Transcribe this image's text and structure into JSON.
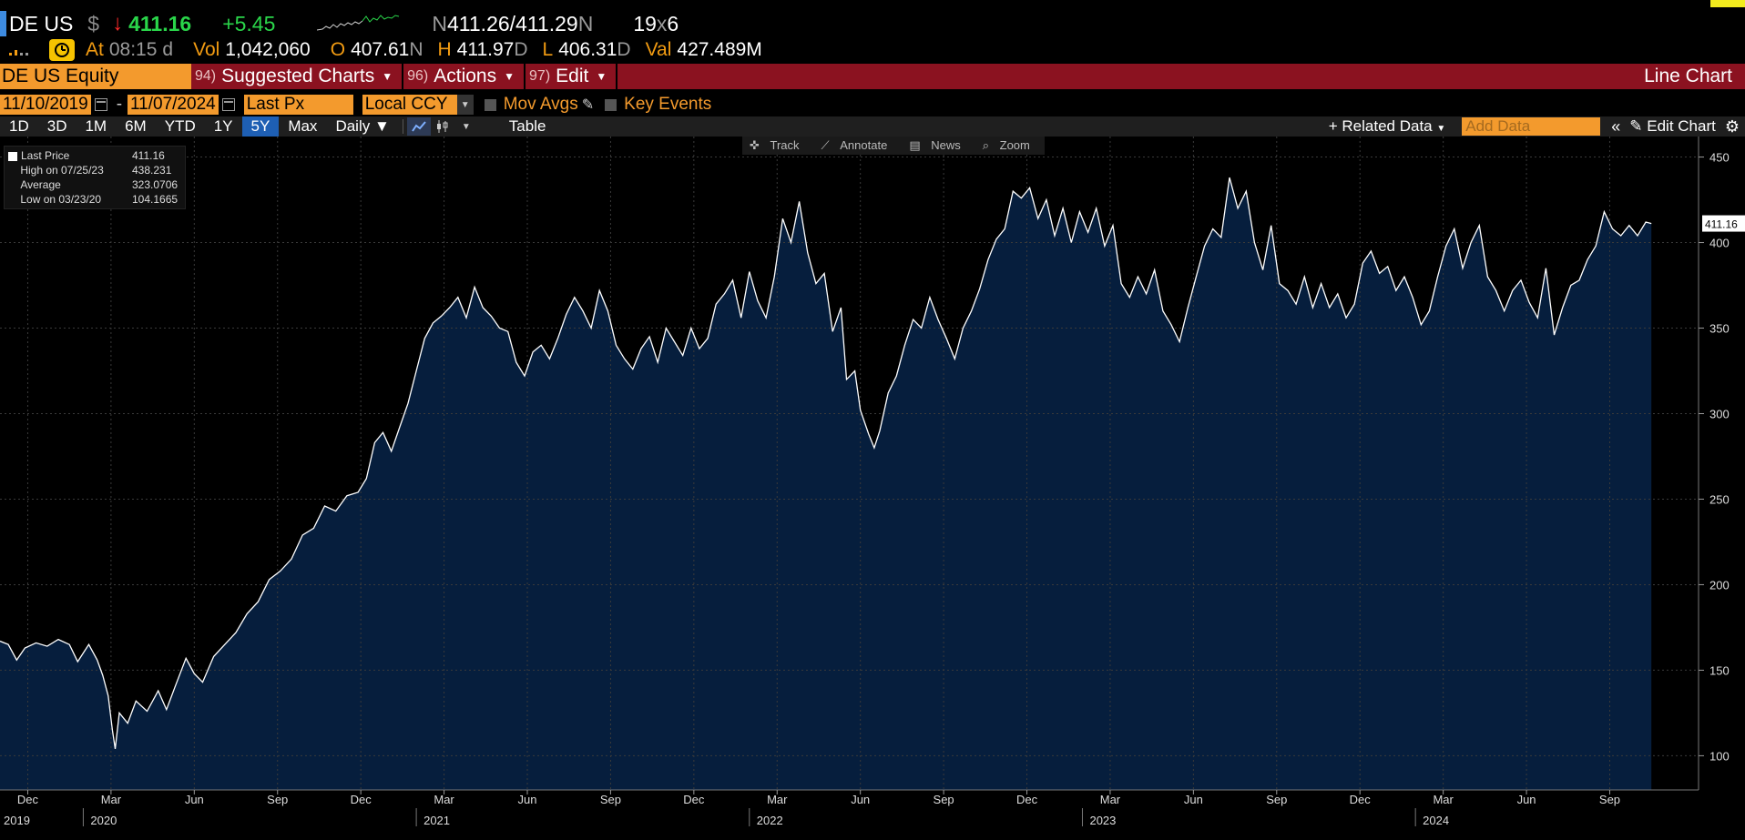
{
  "quote": {
    "ticker": "DE US",
    "currency_symbol": "$",
    "direction_arrow": "↓",
    "last": "411.16",
    "change": "+5.45",
    "bid_prefix": "N",
    "bid_ask": "411.26/411.29",
    "ask_suffix": "N",
    "size": "19",
    "size_x": "x",
    "size2": "6"
  },
  "stats": {
    "at_label": "At",
    "time": "08:15",
    "time_suffix": "d",
    "vol_label": "Vol",
    "vol": "1,042,060",
    "open_label": "O",
    "open": "407.61",
    "open_suffix": "N",
    "high_label": "H",
    "high": "411.97",
    "high_suffix": "D",
    "low_label": "L",
    "low": "406.31",
    "low_suffix": "D",
    "val_label": "Val",
    "val": "427.489M"
  },
  "menu": {
    "security": "DE US Equity",
    "items": [
      {
        "num": "94)",
        "label": "Suggested Charts"
      },
      {
        "num": "96)",
        "label": "Actions"
      },
      {
        "num": "97)",
        "label": "Edit"
      }
    ],
    "chart_type": "Line Chart"
  },
  "params": {
    "start_date": "11/10/2019",
    "end_date": "11/07/2024",
    "field": "Last Px",
    "currency": "Local CCY",
    "mov_avgs": "Mov Avgs",
    "key_events": "Key Events"
  },
  "toolbar": {
    "periods": [
      "1D",
      "3D",
      "1M",
      "6M",
      "YTD",
      "1Y",
      "5Y",
      "Max"
    ],
    "active_period": "5Y",
    "frequency": "Daily",
    "table": "Table",
    "related": "Related Data",
    "add_data_placeholder": "Add Data",
    "edit_chart": "Edit Chart"
  },
  "chart_tools": [
    "Track",
    "Annotate",
    "News",
    "Zoom"
  ],
  "legend": [
    {
      "name": "Last Price",
      "value": "411.16"
    },
    {
      "name": "High on 07/25/23",
      "value": "438.231"
    },
    {
      "name": "Average",
      "value": "323.0706"
    },
    {
      "name": "Low on 03/23/20",
      "value": "104.1665"
    }
  ],
  "colors": {
    "background": "#000000",
    "area_fill": "#061e3d",
    "line": "#ffffff",
    "up": "#2ad54a",
    "down": "#ff2a2a",
    "accent": "#f39a2d",
    "menu_bar": "#8b1220"
  },
  "chart_data": {
    "type": "area",
    "ylim": [
      80,
      462
    ],
    "yticks": [
      100,
      150,
      200,
      250,
      300,
      350,
      400,
      450
    ],
    "last_value_label": "411.16",
    "month_ticks": [
      {
        "m": 1.0,
        "label": "Dec"
      },
      {
        "m": 4.0,
        "label": "Mar"
      },
      {
        "m": 7.0,
        "label": "Jun"
      },
      {
        "m": 10.0,
        "label": "Sep"
      },
      {
        "m": 13.0,
        "label": "Dec"
      },
      {
        "m": 16.0,
        "label": "Mar"
      },
      {
        "m": 19.0,
        "label": "Jun"
      },
      {
        "m": 22.0,
        "label": "Sep"
      },
      {
        "m": 25.0,
        "label": "Dec"
      },
      {
        "m": 28.0,
        "label": "Mar"
      },
      {
        "m": 31.0,
        "label": "Jun"
      },
      {
        "m": 34.0,
        "label": "Sep"
      },
      {
        "m": 37.0,
        "label": "Dec"
      },
      {
        "m": 40.0,
        "label": "Mar"
      },
      {
        "m": 43.0,
        "label": "Jun"
      },
      {
        "m": 46.0,
        "label": "Sep"
      },
      {
        "m": 49.0,
        "label": "Dec"
      },
      {
        "m": 52.0,
        "label": "Mar"
      },
      {
        "m": 55.0,
        "label": "Jun"
      },
      {
        "m": 58.0,
        "label": "Sep"
      }
    ],
    "year_labels": [
      {
        "m": 0.0,
        "label": "2019"
      },
      {
        "m": 3.0,
        "label": "2020"
      },
      {
        "m": 15.0,
        "label": "2021"
      },
      {
        "m": 27.0,
        "label": "2022"
      },
      {
        "m": 39.0,
        "label": "2023"
      },
      {
        "m": 51.0,
        "label": "2024"
      }
    ],
    "points": [
      [
        0.0,
        167
      ],
      [
        0.3,
        165
      ],
      [
        0.6,
        156
      ],
      [
        0.9,
        163
      ],
      [
        1.3,
        166
      ],
      [
        1.7,
        164
      ],
      [
        2.1,
        168
      ],
      [
        2.5,
        165
      ],
      [
        2.8,
        155
      ],
      [
        3.2,
        165
      ],
      [
        3.5,
        156
      ],
      [
        3.7,
        147
      ],
      [
        3.9,
        135
      ],
      [
        4.05,
        115
      ],
      [
        4.15,
        104
      ],
      [
        4.3,
        125
      ],
      [
        4.6,
        119
      ],
      [
        4.9,
        132
      ],
      [
        5.3,
        126
      ],
      [
        5.7,
        138
      ],
      [
        6.0,
        127
      ],
      [
        6.3,
        140
      ],
      [
        6.7,
        157
      ],
      [
        7.0,
        148
      ],
      [
        7.3,
        143
      ],
      [
        7.7,
        158
      ],
      [
        8.1,
        165
      ],
      [
        8.5,
        172
      ],
      [
        8.9,
        183
      ],
      [
        9.3,
        190
      ],
      [
        9.7,
        203
      ],
      [
        10.1,
        208
      ],
      [
        10.5,
        215
      ],
      [
        10.9,
        229
      ],
      [
        11.3,
        233
      ],
      [
        11.7,
        246
      ],
      [
        12.1,
        243
      ],
      [
        12.5,
        252
      ],
      [
        12.9,
        254
      ],
      [
        13.2,
        262
      ],
      [
        13.5,
        283
      ],
      [
        13.8,
        289
      ],
      [
        14.1,
        278
      ],
      [
        14.4,
        292
      ],
      [
        14.7,
        306
      ],
      [
        15.0,
        325
      ],
      [
        15.3,
        344
      ],
      [
        15.6,
        353
      ],
      [
        15.9,
        357
      ],
      [
        16.2,
        362
      ],
      [
        16.5,
        368
      ],
      [
        16.8,
        356
      ],
      [
        17.1,
        374
      ],
      [
        17.4,
        362
      ],
      [
        17.7,
        357
      ],
      [
        18.0,
        350
      ],
      [
        18.3,
        348
      ],
      [
        18.6,
        330
      ],
      [
        18.9,
        322
      ],
      [
        19.2,
        336
      ],
      [
        19.5,
        340
      ],
      [
        19.8,
        332
      ],
      [
        20.1,
        344
      ],
      [
        20.4,
        358
      ],
      [
        20.7,
        368
      ],
      [
        21.0,
        360
      ],
      [
        21.3,
        350
      ],
      [
        21.6,
        372
      ],
      [
        21.9,
        360
      ],
      [
        22.2,
        340
      ],
      [
        22.5,
        332
      ],
      [
        22.8,
        326
      ],
      [
        23.1,
        338
      ],
      [
        23.4,
        345
      ],
      [
        23.7,
        330
      ],
      [
        24.0,
        350
      ],
      [
        24.3,
        342
      ],
      [
        24.6,
        334
      ],
      [
        24.9,
        350
      ],
      [
        25.2,
        338
      ],
      [
        25.5,
        344
      ],
      [
        25.8,
        364
      ],
      [
        26.1,
        370
      ],
      [
        26.4,
        378
      ],
      [
        26.7,
        356
      ],
      [
        27.0,
        383
      ],
      [
        27.3,
        366
      ],
      [
        27.6,
        356
      ],
      [
        27.9,
        380
      ],
      [
        28.2,
        414
      ],
      [
        28.5,
        400
      ],
      [
        28.8,
        424
      ],
      [
        29.1,
        394
      ],
      [
        29.4,
        376
      ],
      [
        29.7,
        382
      ],
      [
        30.0,
        348
      ],
      [
        30.3,
        362
      ],
      [
        30.5,
        320
      ],
      [
        30.8,
        325
      ],
      [
        31.0,
        302
      ],
      [
        31.3,
        288
      ],
      [
        31.5,
        280
      ],
      [
        31.7,
        290
      ],
      [
        32.0,
        312
      ],
      [
        32.3,
        322
      ],
      [
        32.6,
        340
      ],
      [
        32.9,
        355
      ],
      [
        33.2,
        350
      ],
      [
        33.5,
        368
      ],
      [
        33.8,
        355
      ],
      [
        34.1,
        344
      ],
      [
        34.4,
        332
      ],
      [
        34.7,
        350
      ],
      [
        35.0,
        360
      ],
      [
        35.3,
        373
      ],
      [
        35.6,
        390
      ],
      [
        35.9,
        402
      ],
      [
        36.2,
        408
      ],
      [
        36.5,
        430
      ],
      [
        36.8,
        426
      ],
      [
        37.1,
        432
      ],
      [
        37.4,
        414
      ],
      [
        37.7,
        425
      ],
      [
        38.0,
        404
      ],
      [
        38.3,
        420
      ],
      [
        38.6,
        400
      ],
      [
        38.9,
        418
      ],
      [
        39.2,
        406
      ],
      [
        39.5,
        420
      ],
      [
        39.8,
        398
      ],
      [
        40.1,
        410
      ],
      [
        40.4,
        376
      ],
      [
        40.7,
        368
      ],
      [
        41.0,
        380
      ],
      [
        41.3,
        370
      ],
      [
        41.6,
        384
      ],
      [
        41.9,
        360
      ],
      [
        42.2,
        352
      ],
      [
        42.5,
        342
      ],
      [
        42.8,
        362
      ],
      [
        43.1,
        380
      ],
      [
        43.4,
        398
      ],
      [
        43.7,
        408
      ],
      [
        44.0,
        403
      ],
      [
        44.3,
        438
      ],
      [
        44.6,
        420
      ],
      [
        44.9,
        430
      ],
      [
        45.2,
        400
      ],
      [
        45.5,
        384
      ],
      [
        45.8,
        410
      ],
      [
        46.1,
        376
      ],
      [
        46.4,
        372
      ],
      [
        46.7,
        364
      ],
      [
        47.0,
        380
      ],
      [
        47.3,
        362
      ],
      [
        47.6,
        376
      ],
      [
        47.9,
        362
      ],
      [
        48.2,
        370
      ],
      [
        48.5,
        356
      ],
      [
        48.8,
        364
      ],
      [
        49.1,
        388
      ],
      [
        49.4,
        395
      ],
      [
        49.7,
        382
      ],
      [
        50.0,
        386
      ],
      [
        50.3,
        372
      ],
      [
        50.6,
        380
      ],
      [
        50.9,
        368
      ],
      [
        51.2,
        352
      ],
      [
        51.5,
        360
      ],
      [
        51.8,
        380
      ],
      [
        52.1,
        398
      ],
      [
        52.4,
        408
      ],
      [
        52.7,
        385
      ],
      [
        53.0,
        400
      ],
      [
        53.3,
        410
      ],
      [
        53.6,
        380
      ],
      [
        53.9,
        372
      ],
      [
        54.2,
        360
      ],
      [
        54.5,
        372
      ],
      [
        54.8,
        378
      ],
      [
        55.1,
        365
      ],
      [
        55.4,
        356
      ],
      [
        55.7,
        385
      ],
      [
        56.0,
        346
      ],
      [
        56.3,
        362
      ],
      [
        56.6,
        375
      ],
      [
        56.9,
        378
      ],
      [
        57.2,
        390
      ],
      [
        57.5,
        398
      ],
      [
        57.8,
        418
      ],
      [
        58.1,
        408
      ],
      [
        58.4,
        404
      ],
      [
        58.7,
        410
      ],
      [
        59.0,
        404
      ],
      [
        59.3,
        412
      ],
      [
        59.5,
        411.16
      ]
    ]
  }
}
